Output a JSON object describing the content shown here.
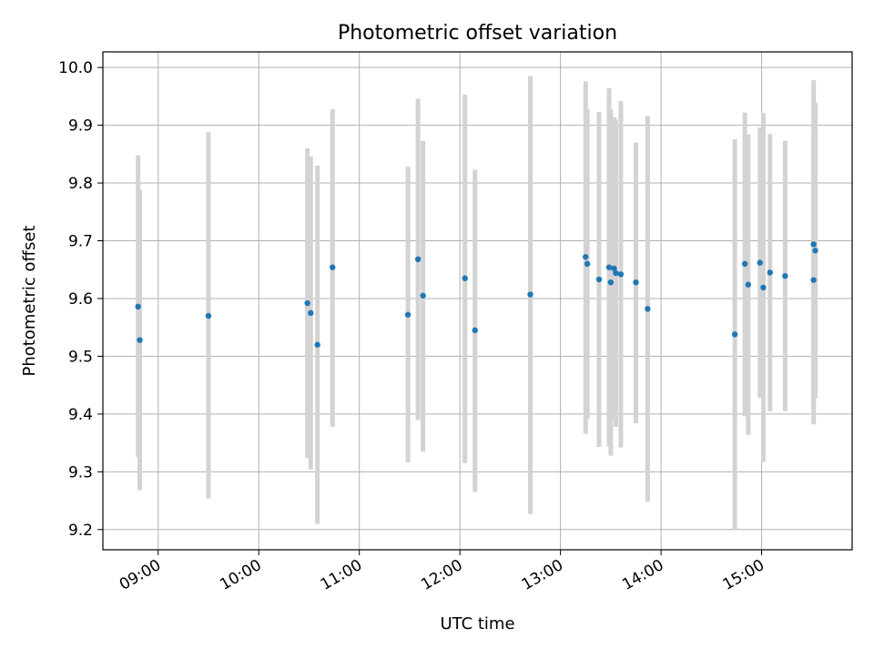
{
  "chart_data": {
    "type": "scatter",
    "title": "Photometric offset variation",
    "xlabel": "UTC time",
    "ylabel": "Photometric offset",
    "x_is_time": true,
    "xlim": [
      "08:27",
      "15:54"
    ],
    "ylim": [
      9.165,
      10.027
    ],
    "yticks": [
      9.2,
      9.3,
      9.4,
      9.5,
      9.6,
      9.7,
      9.8,
      9.9,
      10.0
    ],
    "ytick_labels": [
      "9.2",
      "9.3",
      "9.4",
      "9.5",
      "9.6",
      "9.7",
      "9.8",
      "9.9",
      "10.0"
    ],
    "xticks": [
      "09:00",
      "10:00",
      "11:00",
      "12:00",
      "13:00",
      "14:00",
      "15:00"
    ],
    "grid": true,
    "marker_color": "#1f77b4",
    "errorbar_color": "#d3d3d3",
    "points": [
      {
        "t": "08:48",
        "y": 9.586,
        "lo": 9.326,
        "hi": 9.848
      },
      {
        "t": "08:49",
        "y": 9.528,
        "lo": 9.268,
        "hi": 9.788
      },
      {
        "t": "09:30",
        "y": 9.57,
        "lo": 9.254,
        "hi": 9.888
      },
      {
        "t": "10:29",
        "y": 9.592,
        "lo": 9.324,
        "hi": 9.86
      },
      {
        "t": "10:31",
        "y": 9.575,
        "lo": 9.304,
        "hi": 9.846
      },
      {
        "t": "10:35",
        "y": 9.52,
        "lo": 9.21,
        "hi": 9.83
      },
      {
        "t": "10:44",
        "y": 9.654,
        "lo": 9.378,
        "hi": 9.928
      },
      {
        "t": "11:29",
        "y": 9.572,
        "lo": 9.316,
        "hi": 9.828
      },
      {
        "t": "11:35",
        "y": 9.668,
        "lo": 9.39,
        "hi": 9.946
      },
      {
        "t": "11:38",
        "y": 9.605,
        "lo": 9.335,
        "hi": 9.873
      },
      {
        "t": "12:03",
        "y": 9.635,
        "lo": 9.315,
        "hi": 9.953
      },
      {
        "t": "12:09",
        "y": 9.545,
        "lo": 9.265,
        "hi": 9.823
      },
      {
        "t": "12:42",
        "y": 9.607,
        "lo": 9.227,
        "hi": 9.985
      },
      {
        "t": "13:15",
        "y": 9.672,
        "lo": 9.366,
        "hi": 9.976
      },
      {
        "t": "13:16",
        "y": 9.66,
        "lo": 9.392,
        "hi": 9.928
      },
      {
        "t": "13:23",
        "y": 9.633,
        "lo": 9.343,
        "hi": 9.923
      },
      {
        "t": "13:29",
        "y": 9.654,
        "lo": 9.344,
        "hi": 9.964
      },
      {
        "t": "13:30",
        "y": 9.628,
        "lo": 9.328,
        "hi": 9.928
      },
      {
        "t": "13:32",
        "y": 9.652,
        "lo": 9.39,
        "hi": 9.914
      },
      {
        "t": "13:33",
        "y": 9.644,
        "lo": 9.378,
        "hi": 9.91
      },
      {
        "t": "13:36",
        "y": 9.642,
        "lo": 9.342,
        "hi": 9.942
      },
      {
        "t": "13:45",
        "y": 9.628,
        "lo": 9.384,
        "hi": 9.87
      },
      {
        "t": "13:52",
        "y": 9.582,
        "lo": 9.248,
        "hi": 9.916
      },
      {
        "t": "14:44",
        "y": 9.538,
        "lo": 9.2,
        "hi": 9.876
      },
      {
        "t": "14:50",
        "y": 9.66,
        "lo": 9.396,
        "hi": 9.922
      },
      {
        "t": "14:52",
        "y": 9.624,
        "lo": 9.364,
        "hi": 9.884
      },
      {
        "t": "14:59",
        "y": 9.662,
        "lo": 9.428,
        "hi": 9.896
      },
      {
        "t": "15:01",
        "y": 9.619,
        "lo": 9.317,
        "hi": 9.921
      },
      {
        "t": "15:05",
        "y": 9.645,
        "lo": 9.405,
        "hi": 9.885
      },
      {
        "t": "15:14",
        "y": 9.639,
        "lo": 9.405,
        "hi": 9.873
      },
      {
        "t": "15:31",
        "y": 9.694,
        "lo": 9.41,
        "hi": 9.978
      },
      {
        "t": "15:31",
        "y": 9.632,
        "lo": 9.382,
        "hi": 9.882
      },
      {
        "t": "15:32",
        "y": 9.683,
        "lo": 9.427,
        "hi": 9.939
      }
    ]
  }
}
